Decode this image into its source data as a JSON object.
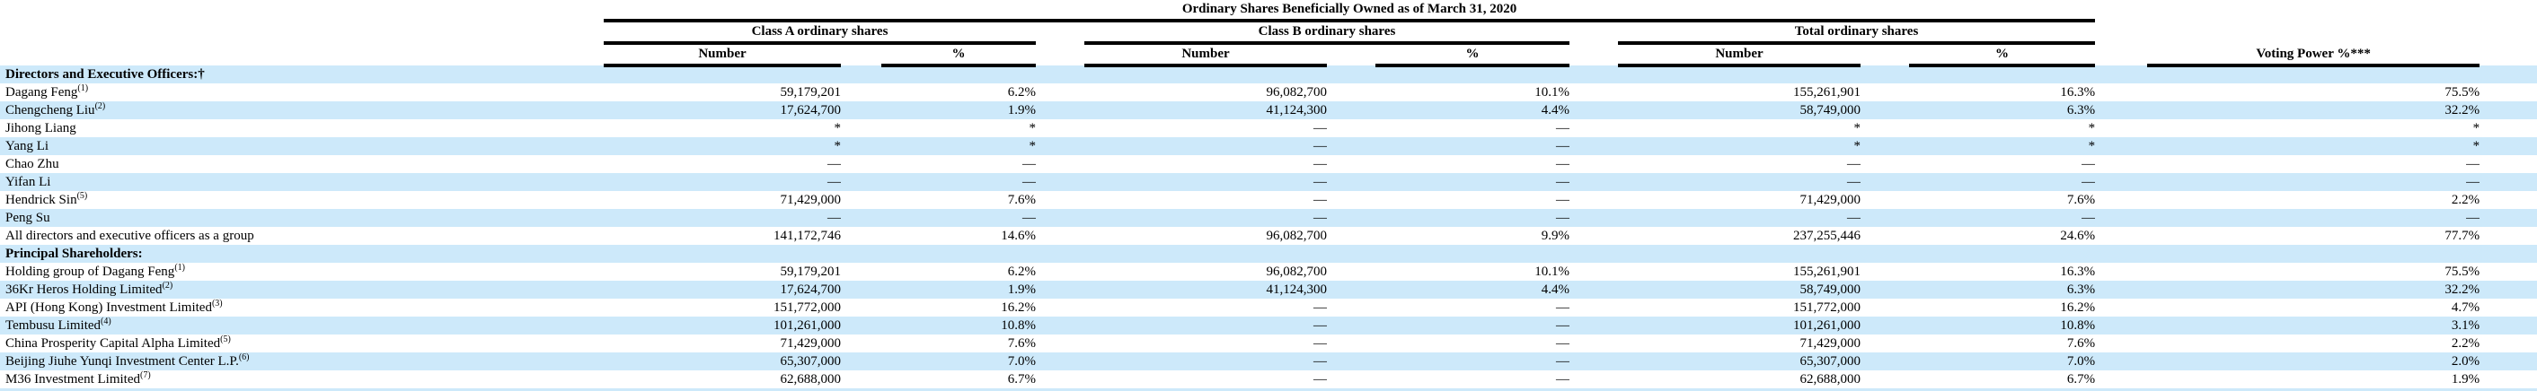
{
  "title": "Ordinary Shares Beneficially Owned as of March 31, 2020",
  "columns": {
    "class_a": "Class A ordinary shares",
    "class_b": "Class B ordinary shares",
    "total": "Total ordinary shares",
    "number": "Number",
    "percent": "%",
    "voting_power": "Voting Power %***"
  },
  "colors": {
    "row_highlight": "#cde9fa",
    "rule": "#000000"
  },
  "rows": [
    {
      "name": "Directors and Executive Officers:†",
      "sup": "",
      "section": true,
      "highlight": true,
      "cells": [
        "",
        "",
        "",
        "",
        "",
        "",
        ""
      ]
    },
    {
      "name": "Dagang Feng",
      "sup": "(1)",
      "section": false,
      "highlight": false,
      "cells": [
        "59,179,201",
        "6.2%",
        "96,082,700",
        "10.1%",
        "155,261,901",
        "16.3%",
        "75.5%"
      ]
    },
    {
      "name": "Chengcheng Liu",
      "sup": "(2)",
      "section": false,
      "highlight": true,
      "cells": [
        "17,624,700",
        "1.9%",
        "41,124,300",
        "4.4%",
        "58,749,000",
        "6.3%",
        "32.2%"
      ]
    },
    {
      "name": "Jihong Liang",
      "sup": "",
      "section": false,
      "highlight": false,
      "cells": [
        "*",
        "*",
        "—",
        "—",
        "*",
        "*",
        "*"
      ]
    },
    {
      "name": "Yang Li",
      "sup": "",
      "section": false,
      "highlight": true,
      "cells": [
        "*",
        "*",
        "—",
        "—",
        "*",
        "*",
        "*"
      ]
    },
    {
      "name": "Chao Zhu",
      "sup": "",
      "section": false,
      "highlight": false,
      "cells": [
        "—",
        "—",
        "—",
        "—",
        "—",
        "—",
        "—"
      ]
    },
    {
      "name": "Yifan Li",
      "sup": "",
      "section": false,
      "highlight": true,
      "cells": [
        "—",
        "—",
        "—",
        "—",
        "—",
        "—",
        "—"
      ]
    },
    {
      "name": "Hendrick Sin",
      "sup": "(5)",
      "section": false,
      "highlight": false,
      "cells": [
        "71,429,000",
        "7.6%",
        "—",
        "—",
        "71,429,000",
        "7.6%",
        "2.2%"
      ]
    },
    {
      "name": "Peng Su",
      "sup": "",
      "section": false,
      "highlight": true,
      "cells": [
        "—",
        "—",
        "—",
        "—",
        "—",
        "—",
        "—"
      ]
    },
    {
      "name": "All directors and executive officers as a group",
      "sup": "",
      "section": false,
      "highlight": false,
      "cells": [
        "141,172,746",
        "14.6%",
        "96,082,700",
        "9.9%",
        "237,255,446",
        "24.6%",
        "77.7%"
      ]
    },
    {
      "name": "Principal Shareholders:",
      "sup": "",
      "section": true,
      "highlight": true,
      "cells": [
        "",
        "",
        "",
        "",
        "",
        "",
        ""
      ]
    },
    {
      "name": "Holding group of Dagang Feng",
      "sup": "(1)",
      "section": false,
      "highlight": false,
      "cells": [
        "59,179,201",
        "6.2%",
        "96,082,700",
        "10.1%",
        "155,261,901",
        "16.3%",
        "75.5%"
      ]
    },
    {
      "name": "36Kr Heros Holding Limited",
      "sup": "(2)",
      "section": false,
      "highlight": true,
      "cells": [
        "17,624,700",
        "1.9%",
        "41,124,300",
        "4.4%",
        "58,749,000",
        "6.3%",
        "32.2%"
      ]
    },
    {
      "name": "API (Hong Kong) Investment Limited",
      "sup": "(3)",
      "section": false,
      "highlight": false,
      "cells": [
        "151,772,000",
        "16.2%",
        "—",
        "—",
        "151,772,000",
        "16.2%",
        "4.7%"
      ]
    },
    {
      "name": "Tembusu Limited",
      "sup": "(4)",
      "section": false,
      "highlight": true,
      "cells": [
        "101,261,000",
        "10.8%",
        "—",
        "—",
        "101,261,000",
        "10.8%",
        "3.1%"
      ]
    },
    {
      "name": "China Prosperity Capital Alpha Limited",
      "sup": "(5)",
      "section": false,
      "highlight": false,
      "cells": [
        "71,429,000",
        "7.6%",
        "—",
        "—",
        "71,429,000",
        "7.6%",
        "2.2%"
      ]
    },
    {
      "name": "Beijing Jiuhe Yunqi Investment Center L.P.",
      "sup": "(6)",
      "section": false,
      "highlight": true,
      "cells": [
        "65,307,000",
        "7.0%",
        "—",
        "—",
        "65,307,000",
        "7.0%",
        "2.0%"
      ]
    },
    {
      "name": "M36 Investment Limited",
      "sup": "(7)",
      "section": false,
      "highlight": false,
      "cells": [
        "62,688,000",
        "6.7%",
        "—",
        "—",
        "62,688,000",
        "6.7%",
        "1.9%"
      ]
    }
  ]
}
